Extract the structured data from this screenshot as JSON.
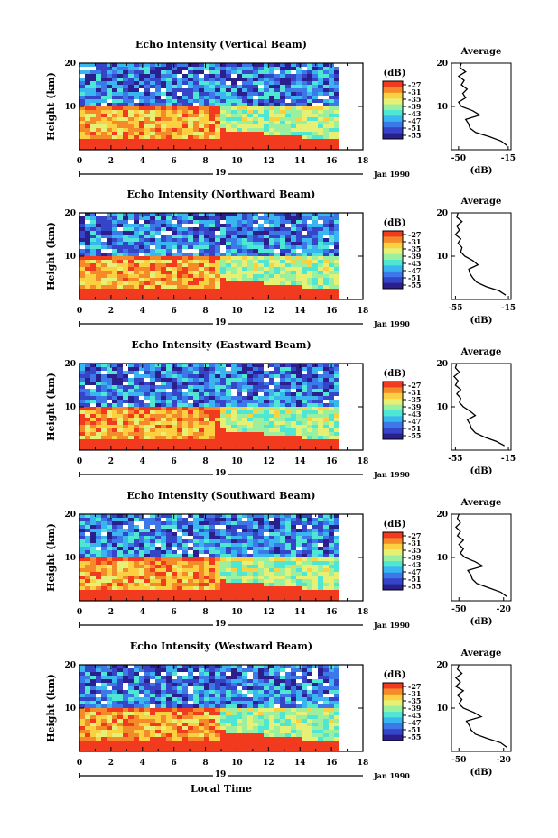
{
  "figure": {
    "xlabel": "Local Time",
    "date_label": "Jan 1990",
    "day_label": "19",
    "heatmap_ylabel": "Height (km)",
    "colorbar_unit": "(dB)",
    "avg_title": "Average",
    "avg_xlabel": "(dB)"
  },
  "colors": {
    "colormap": [
      "#2a1f8c",
      "#3645c8",
      "#3d78e8",
      "#39b5f0",
      "#4fe6d4",
      "#9bf0a0",
      "#e6f075",
      "#fbd142",
      "#f58a2a",
      "#f23a1e"
    ]
  },
  "chart_data": [
    {
      "type": "heatmap",
      "title": "Echo Intensity (Vertical Beam)",
      "xlabel": "Local Time",
      "ylabel": "Height (km)",
      "x_ticks": [
        0,
        2,
        4,
        6,
        8,
        10,
        12,
        14,
        16,
        18
      ],
      "y_ticks": [
        10,
        20
      ],
      "xlim": [
        0,
        18
      ],
      "ylim": [
        0,
        20
      ],
      "data_end_hour": 16.5,
      "colorbar": {
        "unit": "(dB)",
        "ticks": [
          -27,
          -31,
          -35,
          -39,
          -43,
          -47,
          -51,
          -55
        ]
      },
      "average_profile": {
        "title": "Average",
        "xlabel": "(dB)",
        "x_tick_labels": [
          "-50",
          "-15"
        ],
        "xlim": [
          -55,
          -13
        ],
        "ylim": [
          0,
          20
        ],
        "y_ticks": [
          10,
          20
        ],
        "height": [
          1,
          2,
          3,
          4,
          5,
          6,
          7,
          8,
          9,
          10,
          11,
          12,
          13,
          14,
          15,
          16,
          17,
          18,
          19,
          20
        ],
        "db": [
          -16,
          -20,
          -28,
          -38,
          -42,
          -43,
          -45,
          -35,
          -40,
          -48,
          -50,
          -45,
          -47,
          -44,
          -48,
          -46,
          -50,
          -45,
          -49,
          -48
        ]
      }
    },
    {
      "type": "heatmap",
      "title": "Echo Intensity (Northward Beam)",
      "xlabel": "Local Time",
      "ylabel": "Height (km)",
      "x_ticks": [
        0,
        2,
        4,
        6,
        8,
        10,
        12,
        14,
        16,
        18
      ],
      "y_ticks": [
        10,
        20
      ],
      "xlim": [
        0,
        18
      ],
      "ylim": [
        0,
        20
      ],
      "data_end_hour": 16.5,
      "colorbar": {
        "unit": "(dB)",
        "ticks": [
          -27,
          -31,
          -35,
          -39,
          -43,
          -47,
          -51,
          -55
        ]
      },
      "average_profile": {
        "title": "Average",
        "xlabel": "(dB)",
        "x_tick_labels": [
          "-55",
          "-15"
        ],
        "xlim": [
          -58,
          -13
        ],
        "ylim": [
          0,
          20
        ],
        "y_ticks": [
          10,
          20
        ],
        "height": [
          1,
          2,
          3,
          4,
          5,
          6,
          7,
          8,
          9,
          10,
          11,
          12,
          13,
          14,
          15,
          16,
          17,
          18,
          19,
          20
        ],
        "db": [
          -17,
          -22,
          -32,
          -39,
          -42,
          -44,
          -45,
          -38,
          -42,
          -48,
          -51,
          -50,
          -53,
          -51,
          -55,
          -52,
          -54,
          -50,
          -54,
          -53
        ]
      }
    },
    {
      "type": "heatmap",
      "title": "Echo Intensity (Eastward Beam)",
      "xlabel": "Local Time",
      "ylabel": "Height (km)",
      "x_ticks": [
        0,
        2,
        4,
        6,
        8,
        10,
        12,
        14,
        16,
        18
      ],
      "y_ticks": [
        10,
        20
      ],
      "xlim": [
        0,
        18
      ],
      "ylim": [
        0,
        20
      ],
      "data_end_hour": 16.5,
      "colorbar": {
        "unit": "(dB)",
        "ticks": [
          -27,
          -31,
          -35,
          -39,
          -43,
          -47,
          -51,
          -55
        ]
      },
      "average_profile": {
        "title": "Average",
        "xlabel": "(dB)",
        "x_tick_labels": [
          "-55",
          "-15"
        ],
        "xlim": [
          -58,
          -13
        ],
        "ylim": [
          0,
          20
        ],
        "y_ticks": [
          10,
          20
        ],
        "height": [
          1,
          2,
          3,
          4,
          5,
          6,
          7,
          8,
          9,
          10,
          11,
          12,
          13,
          14,
          15,
          16,
          17,
          18,
          19,
          20
        ],
        "db": [
          -18,
          -24,
          -33,
          -40,
          -43,
          -44,
          -46,
          -40,
          -44,
          -49,
          -52,
          -51,
          -54,
          -51,
          -55,
          -53,
          -56,
          -52,
          -55,
          -54
        ]
      }
    },
    {
      "type": "heatmap",
      "title": "Echo Intensity (Southward Beam)",
      "xlabel": "Local Time",
      "ylabel": "Height (km)",
      "x_ticks": [
        0,
        2,
        4,
        6,
        8,
        10,
        12,
        14,
        16,
        18
      ],
      "y_ticks": [
        10,
        20
      ],
      "xlim": [
        0,
        18
      ],
      "ylim": [
        0,
        20
      ],
      "data_end_hour": 16.5,
      "colorbar": {
        "unit": "(dB)",
        "ticks": [
          -27,
          -31,
          -35,
          -39,
          -43,
          -47,
          -51,
          -55
        ]
      },
      "average_profile": {
        "title": "Average",
        "xlabel": "(dB)",
        "x_tick_labels": [
          "-50",
          "-20"
        ],
        "xlim": [
          -55,
          -15
        ],
        "ylim": [
          0,
          20
        ],
        "y_ticks": [
          10,
          20
        ],
        "height": [
          1,
          2,
          3,
          4,
          5,
          6,
          7,
          8,
          9,
          10,
          11,
          12,
          13,
          14,
          15,
          16,
          17,
          18,
          19,
          20
        ],
        "db": [
          -18,
          -22,
          -30,
          -38,
          -41,
          -42,
          -44,
          -34,
          -39,
          -46,
          -49,
          -47,
          -50,
          -47,
          -51,
          -49,
          -52,
          -49,
          -51,
          -50
        ]
      }
    },
    {
      "type": "heatmap",
      "title": "Echo Intensity (Westward Beam)",
      "xlabel": "Local Time",
      "ylabel": "Height (km)",
      "x_ticks": [
        0,
        2,
        4,
        6,
        8,
        10,
        12,
        14,
        16,
        18
      ],
      "y_ticks": [
        10,
        20
      ],
      "xlim": [
        0,
        18
      ],
      "ylim": [
        0,
        20
      ],
      "data_end_hour": 16.5,
      "colorbar": {
        "unit": "(dB)",
        "ticks": [
          -27,
          -31,
          -35,
          -39,
          -43,
          -47,
          -51,
          -55
        ]
      },
      "average_profile": {
        "title": "Average",
        "xlabel": "(dB)",
        "x_tick_labels": [
          "-50",
          "-20"
        ],
        "xlim": [
          -55,
          -15
        ],
        "ylim": [
          0,
          20
        ],
        "y_ticks": [
          10,
          20
        ],
        "height": [
          1,
          2,
          3,
          4,
          5,
          6,
          7,
          8,
          9,
          10,
          11,
          12,
          13,
          14,
          15,
          16,
          17,
          18,
          19,
          20
        ],
        "db": [
          -18,
          -22,
          -31,
          -39,
          -42,
          -43,
          -45,
          -35,
          -40,
          -47,
          -50,
          -48,
          -51,
          -47,
          -52,
          -49,
          -52,
          -48,
          -51,
          -50
        ]
      }
    }
  ]
}
